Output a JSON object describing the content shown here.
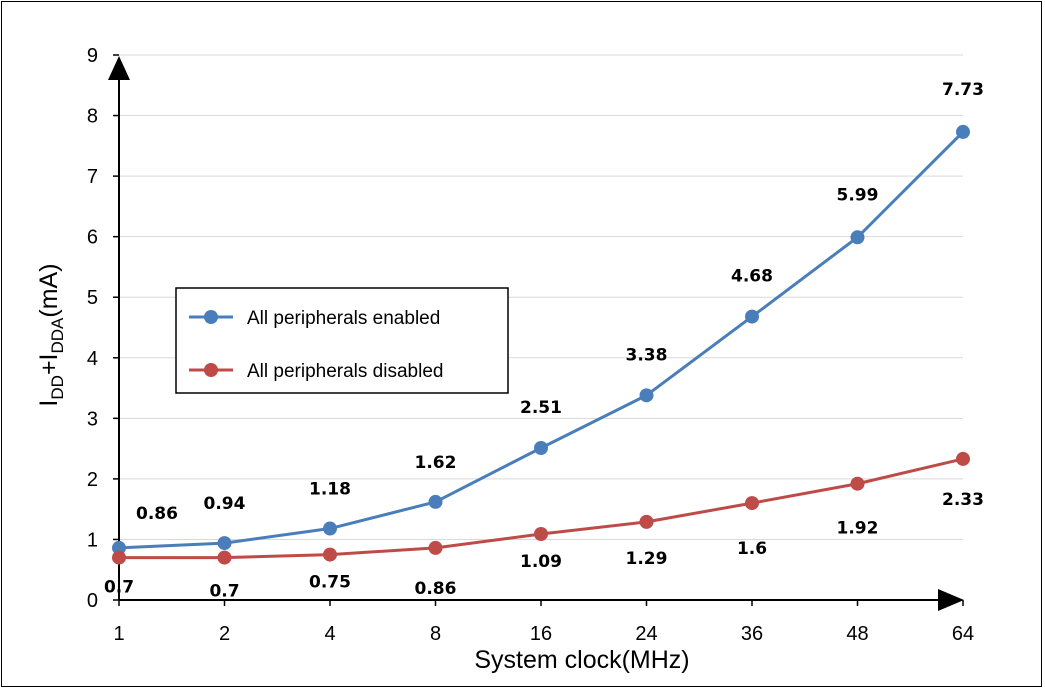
{
  "chart_data": {
    "type": "line",
    "categories": [
      "1",
      "2",
      "4",
      "8",
      "16",
      "24",
      "36",
      "48",
      "64"
    ],
    "xlabel": "System clock(MHz)",
    "ylabel": {
      "base1": "I",
      "sub1": "DD",
      "plus": "+I",
      "sub2": "DDA",
      "unit": "(mA)"
    },
    "ylim": [
      0,
      9
    ],
    "yticks": [
      "0",
      "1",
      "2",
      "3",
      "4",
      "5",
      "6",
      "7",
      "8",
      "9"
    ],
    "grid": "horizontal",
    "legend_position": "left-center",
    "series": [
      {
        "name": "All peripherals enabled",
        "color": "#4a7ebb",
        "values": [
          0.86,
          0.94,
          1.18,
          1.62,
          2.51,
          3.38,
          4.68,
          5.99,
          7.73
        ],
        "labels": [
          "0.86",
          "0.94",
          "1.18",
          "1.62",
          "2.51",
          "3.38",
          "4.68",
          "5.99",
          "7.73"
        ]
      },
      {
        "name": "All peripherals disabled",
        "color": "#be4b48",
        "values": [
          0.7,
          0.7,
          0.75,
          0.86,
          1.09,
          1.29,
          1.6,
          1.92,
          2.33
        ],
        "labels": [
          "0.7",
          "0.7",
          "0.75",
          "0.86",
          "1.09",
          "1.29",
          "1.6",
          "1.92",
          "2.33"
        ]
      }
    ]
  }
}
